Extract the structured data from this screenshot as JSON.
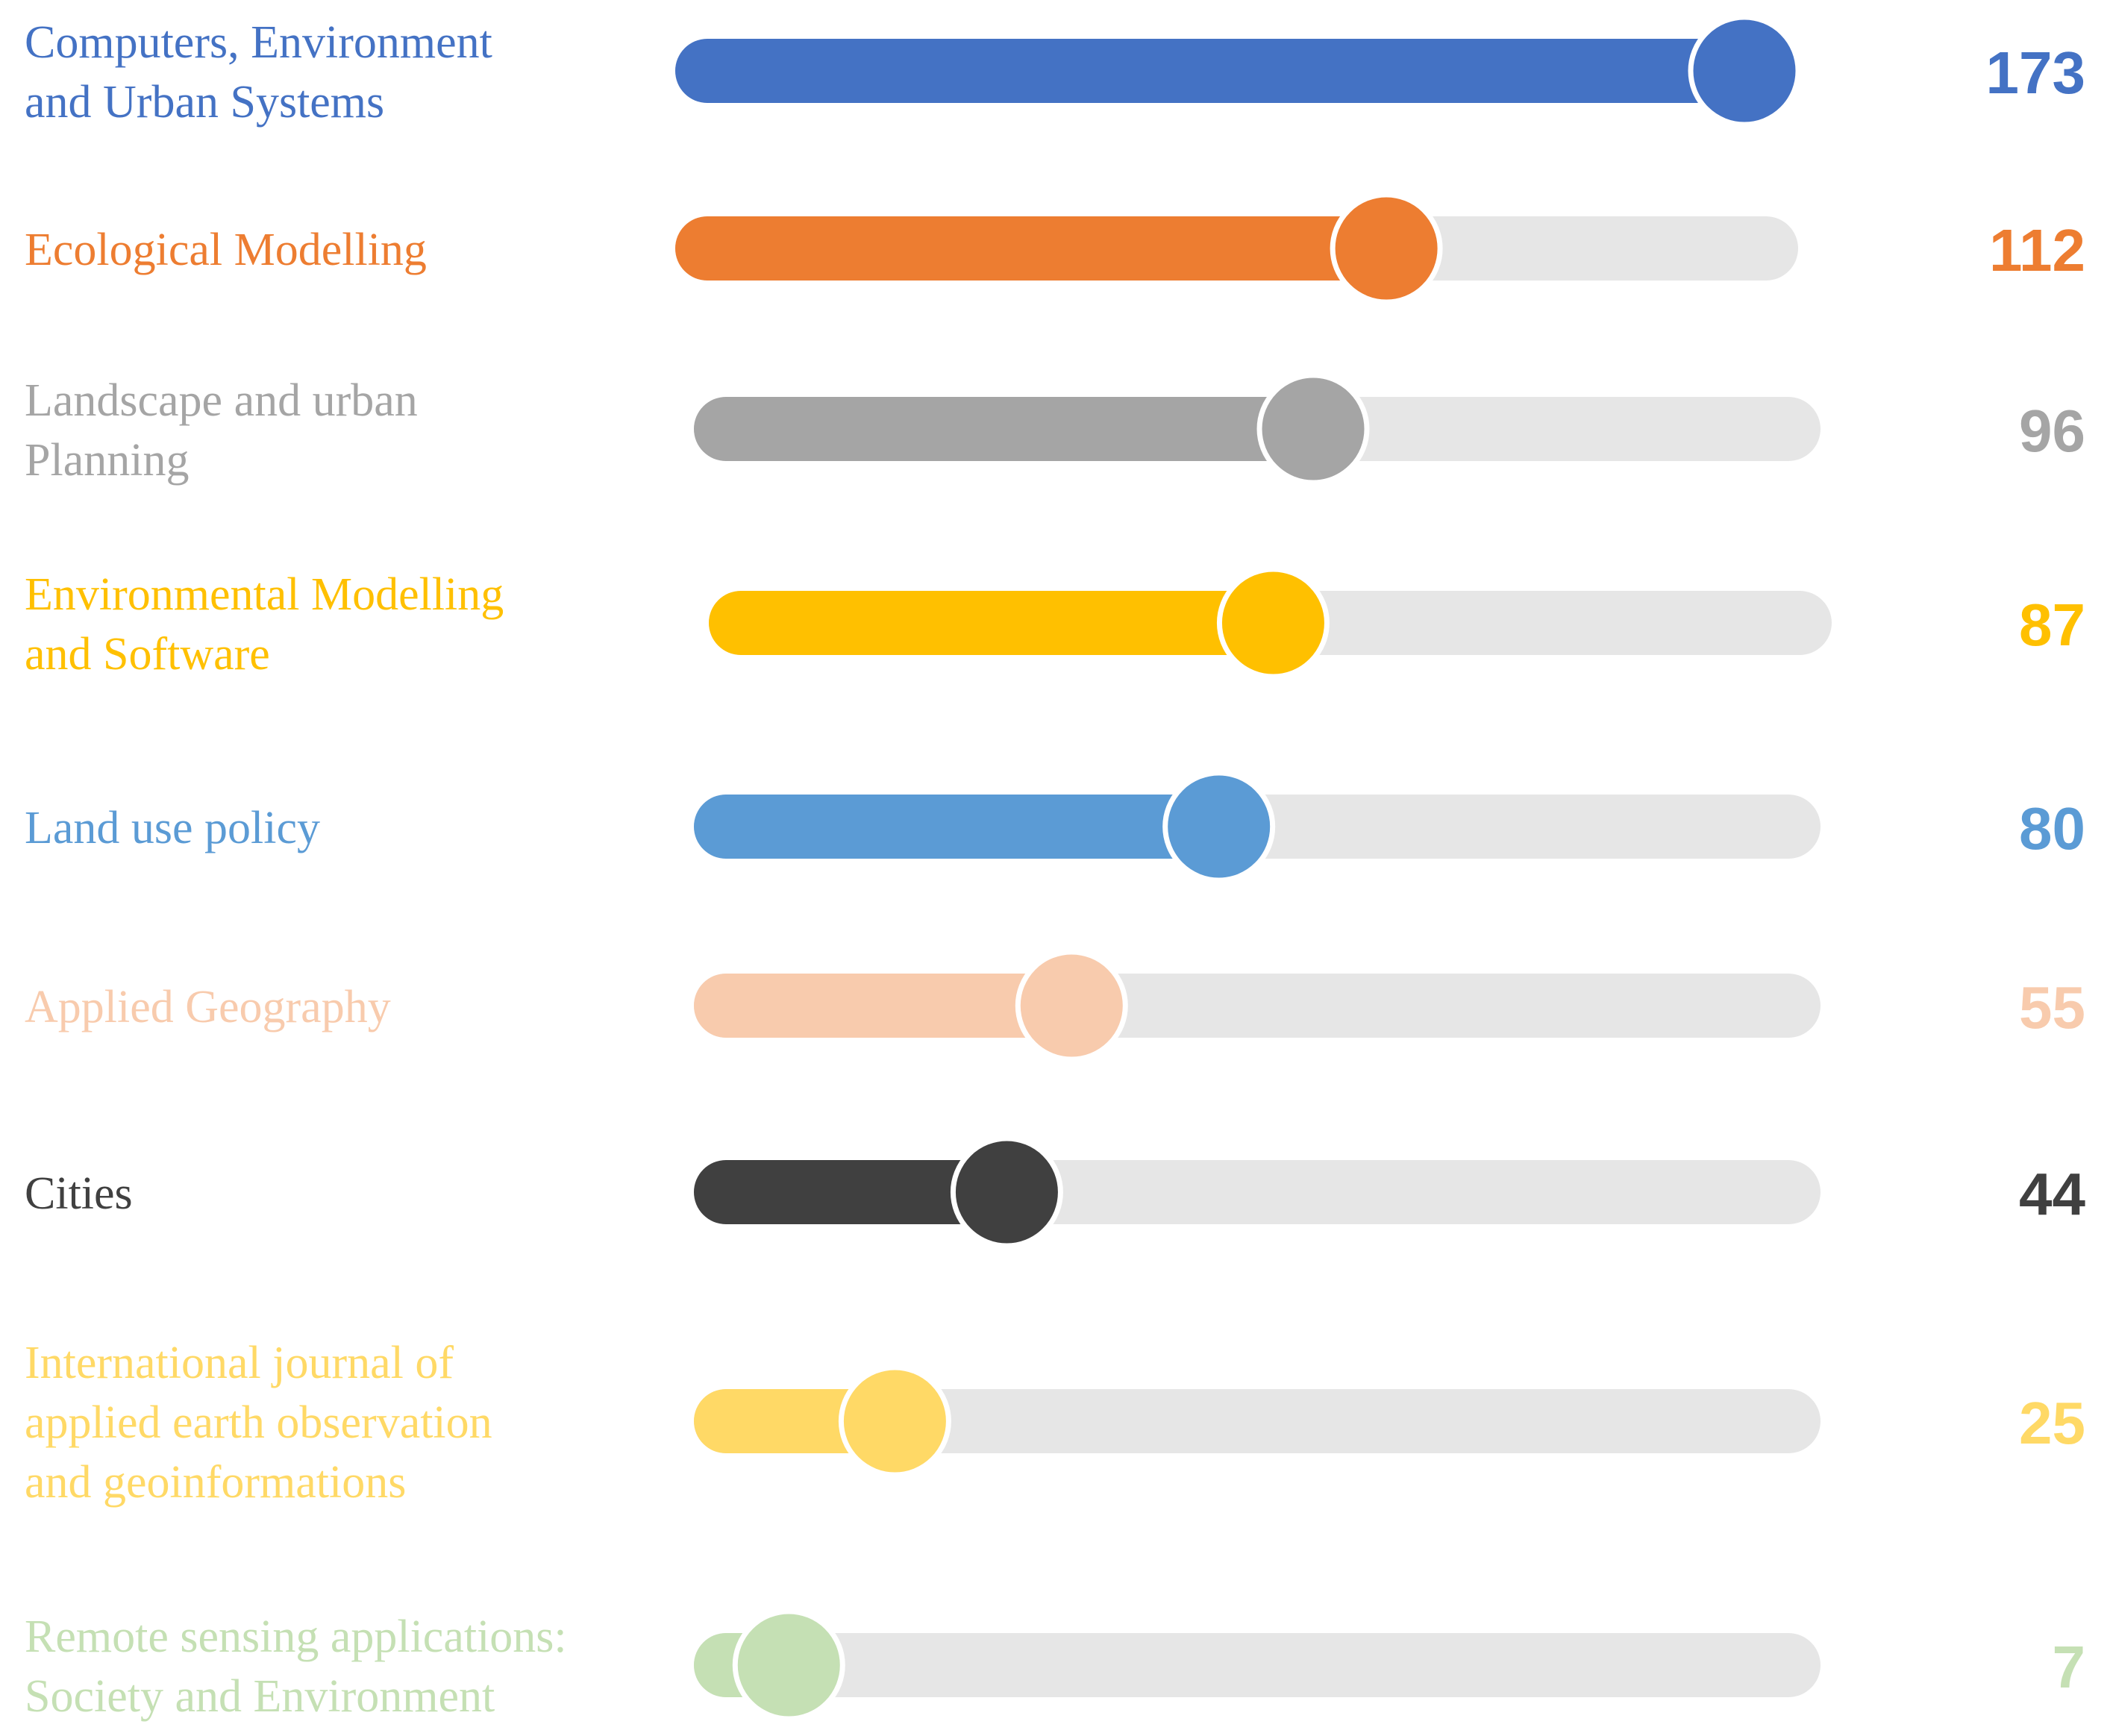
{
  "chart_data": {
    "type": "bar",
    "orientation": "horizontal",
    "style": "slider-progress",
    "xlim": [
      0,
      173
    ],
    "track_color": "#e6e6e6",
    "categories": [
      "Computers, Environment and Urban Systems",
      "Ecological Modelling",
      "Landscape and urban Planning",
      "Environmental Modelling and Software",
      "Land use policy",
      "Applied Geography",
      "Cities",
      "International journal of applied earth observation and geoinformations",
      "Remote sensing applications: Society and Environment"
    ],
    "label_lines": [
      [
        "Computers, Environment",
        "and Urban Systems"
      ],
      [
        "Ecological Modelling"
      ],
      [
        "Landscape and urban",
        "Planning"
      ],
      [
        "Environmental Modelling",
        "and Software"
      ],
      [
        "Land use policy"
      ],
      [
        "Applied Geography"
      ],
      [
        "Cities"
      ],
      [
        "International journal of",
        "applied earth observation",
        "and geoinformations"
      ],
      [
        "Remote sensing applications:",
        "Society and Environment"
      ]
    ],
    "values": [
      173,
      112,
      96,
      87,
      80,
      55,
      44,
      25,
      7
    ],
    "colors": [
      "#4472c4",
      "#ed7d31",
      "#a5a5a5",
      "#ffc000",
      "#5b9bd5",
      "#f8cbad",
      "#404040",
      "#ffd966",
      "#c5e0b4"
    ]
  }
}
